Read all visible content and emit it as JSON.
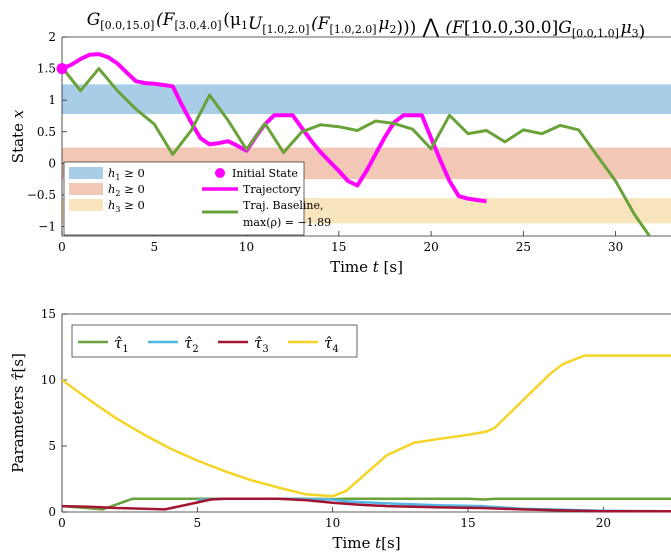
{
  "chart_data": [
    {
      "type": "line",
      "title_parts": [
        "G",
        "[0.0,15.0]",
        "(F",
        "[3.0,4.0]",
        "(μ",
        "1",
        "U",
        "[1.0,2.0]",
        "(F",
        "[1.0,2.0]",
        "μ",
        "2",
        ")))",
        "⋀",
        "(F",
        "[10.0,30.0]",
        "G",
        "[0.0,1.0]",
        "μ",
        "3",
        ")"
      ],
      "xlabel_text": "Time ",
      "xlabel_var": "t",
      "xlabel_unit": " [s]",
      "ylabel_text": "State ",
      "ylabel_var": "x",
      "xlim": [
        0,
        33
      ],
      "ylim": [
        -1.15,
        2
      ],
      "xticks": [
        0,
        5,
        10,
        15,
        20,
        25,
        30
      ],
      "yticks": [
        -1,
        -0.5,
        0,
        0.5,
        1,
        1.5,
        2
      ],
      "ytick_labels": [
        "-1",
        "-0.5",
        "0",
        "0.5",
        "1",
        "1.5",
        "2"
      ],
      "regions": [
        {
          "label_var": "h",
          "label_sub": "1",
          "label_rel": " ≥ 0",
          "y0": 0.78,
          "y1": 1.25,
          "color": "#a8cde6"
        },
        {
          "label_var": "h",
          "label_sub": "2",
          "label_rel": " ≥ 0",
          "y0": -0.25,
          "y1": 0.25,
          "color": "#f2c7b5"
        },
        {
          "label_var": "h",
          "label_sub": "3",
          "label_rel": " ≥ 0",
          "y0": -0.95,
          "y1": -0.55,
          "color": "#f8e5bd"
        }
      ],
      "initial_state": {
        "label": "Initial State",
        "x": 0,
        "y": 1.5,
        "color": "#ff00ff"
      },
      "series": [
        {
          "name": "Trajectory",
          "color": "#ff00ff",
          "x": [
            0,
            0.5,
            1,
            1.5,
            2,
            2.5,
            3,
            3.5,
            4,
            4.5,
            5,
            5.5,
            6,
            6.5,
            7,
            7.5,
            8,
            8.5,
            9,
            9.5,
            10,
            10.5,
            11,
            11.5,
            12,
            12.5,
            13,
            13.5,
            14,
            14.5,
            15,
            15.5,
            16,
            16.5,
            17,
            17.5,
            18,
            18.5,
            19,
            19.5,
            20,
            20.5,
            21,
            21.5,
            22,
            22.5,
            23
          ],
          "y": [
            1.5,
            1.56,
            1.65,
            1.72,
            1.73,
            1.68,
            1.58,
            1.44,
            1.3,
            1.27,
            1.26,
            1.24,
            1.22,
            0.92,
            0.65,
            0.4,
            0.3,
            0.32,
            0.35,
            0.28,
            0.2,
            0.42,
            0.62,
            0.76,
            0.76,
            0.76,
            0.56,
            0.36,
            0.18,
            0.03,
            -0.12,
            -0.28,
            -0.35,
            -0.12,
            0.15,
            0.42,
            0.65,
            0.76,
            0.76,
            0.76,
            0.4,
            0.05,
            -0.28,
            -0.52,
            -0.56,
            -0.58,
            -0.6
          ]
        },
        {
          "name": "Traj. Baseline,",
          "name_line2": "max(ρ) = −1.89",
          "color": "#6aa23a",
          "x": [
            0,
            1,
            2,
            3,
            4,
            5,
            6,
            7,
            8,
            9,
            10,
            11,
            12,
            13,
            14,
            15,
            16,
            17,
            18,
            19,
            20,
            21,
            22,
            23,
            24,
            25,
            26,
            27,
            28,
            29,
            30,
            31,
            32,
            33
          ],
          "y": [
            1.52,
            1.15,
            1.5,
            1.15,
            0.86,
            0.62,
            0.14,
            0.52,
            1.08,
            0.68,
            0.22,
            0.63,
            0.17,
            0.5,
            0.61,
            0.58,
            0.52,
            0.67,
            0.63,
            0.54,
            0.23,
            0.76,
            0.47,
            0.52,
            0.34,
            0.53,
            0.47,
            0.6,
            0.53,
            0.12,
            -0.28,
            -0.8,
            -1.22,
            -1.5
          ]
        }
      ]
    },
    {
      "type": "line",
      "xlabel_text": "Time ",
      "xlabel_var": "t",
      "xlabel_unit": "[s]",
      "ylabel_text": "Parameters ",
      "ylabel_var": "τ̂",
      "ylabel_unit": "[s]",
      "xlim": [
        0,
        22.5
      ],
      "ylim": [
        0,
        15
      ],
      "xticks": [
        0,
        5,
        10,
        15,
        20
      ],
      "yticks": [
        0,
        5,
        10,
        15
      ],
      "series": [
        {
          "name_var": "τ̂",
          "name_sub": "1",
          "color": "#6aa23a",
          "x": [
            0,
            1.5,
            2.6,
            5.5,
            8,
            9,
            10,
            10.5,
            12,
            14,
            15,
            15.6,
            16,
            17,
            20,
            22.5
          ],
          "y": [
            0.45,
            0.2,
            1.0,
            1.0,
            1.0,
            1.0,
            0.98,
            1.0,
            1.0,
            1.0,
            1.0,
            0.95,
            1.0,
            1.0,
            1.0,
            1.0
          ]
        },
        {
          "name_var": "τ̂",
          "name_sub": "2",
          "color": "#4fb6e6",
          "x": [
            5,
            6,
            8,
            10,
            10.5,
            12,
            14,
            15.5,
            17,
            20,
            22.5
          ],
          "y": [
            0.9,
            1.0,
            1.0,
            0.95,
            0.8,
            0.65,
            0.5,
            0.45,
            0.25,
            0.1,
            0.05
          ]
        },
        {
          "name_var": "τ̂",
          "name_sub": "3",
          "color": "#a2142f",
          "x": [
            0,
            1,
            2,
            3,
            3.8,
            4.5,
            5.5,
            6,
            8,
            9,
            10,
            11,
            12,
            14,
            15.5,
            17,
            19,
            20,
            22.5
          ],
          "y": [
            0.45,
            0.4,
            0.3,
            0.25,
            0.2,
            0.5,
            0.95,
            1.0,
            1.0,
            0.9,
            0.7,
            0.55,
            0.45,
            0.35,
            0.3,
            0.2,
            0.1,
            0.05,
            0.05
          ]
        },
        {
          "name_var": "τ̂",
          "name_sub": "4",
          "color": "#f5d327",
          "x": [
            0,
            1,
            2,
            3,
            4,
            5,
            6,
            7,
            8,
            9,
            10,
            10.5,
            11,
            11.5,
            12,
            13,
            14,
            15,
            15.7,
            16,
            17,
            18,
            18.5,
            19.3,
            20,
            21,
            22,
            22.5
          ],
          "y": [
            10.0,
            8.5,
            7.1,
            5.9,
            4.8,
            3.9,
            3.1,
            2.4,
            1.85,
            1.35,
            1.2,
            1.6,
            2.5,
            3.4,
            4.3,
            5.25,
            5.55,
            5.85,
            6.1,
            6.4,
            8.4,
            10.4,
            11.2,
            11.85,
            11.85,
            11.85,
            11.85,
            11.85
          ]
        }
      ]
    }
  ]
}
